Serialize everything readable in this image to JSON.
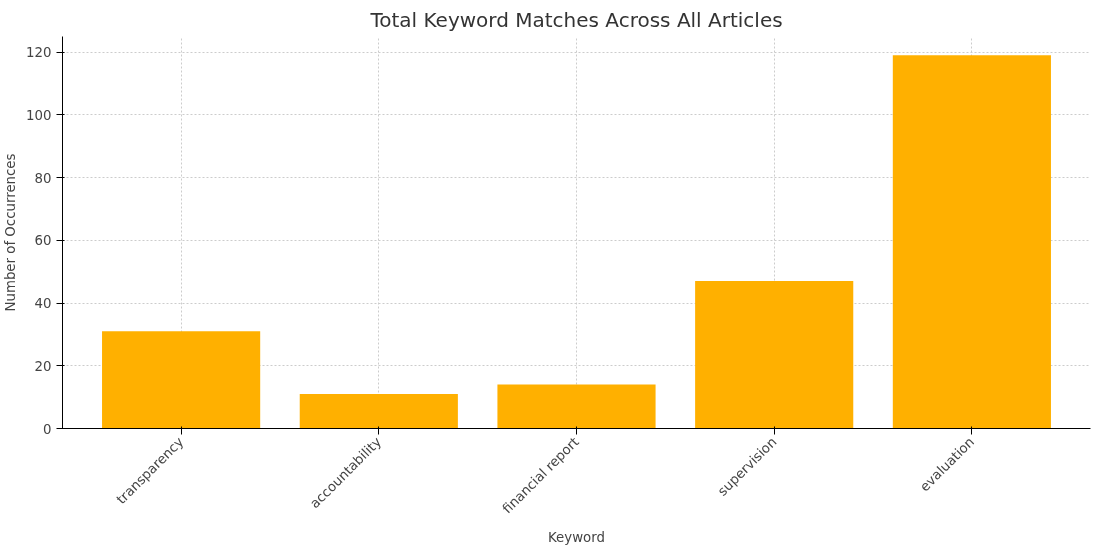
{
  "chart_data": {
    "type": "bar",
    "title": "Total Keyword Matches Across All Articles",
    "xlabel": "Keyword",
    "ylabel": "Number of Occurrences",
    "categories": [
      "transparency",
      "accountability",
      "financial report",
      "supervision",
      "evaluation"
    ],
    "values": [
      31,
      11,
      14,
      47,
      119
    ],
    "color": "#ffb000",
    "ylim": [
      0,
      125
    ],
    "yticks": [
      0,
      20,
      40,
      60,
      80,
      100,
      120
    ],
    "grid": true
  }
}
